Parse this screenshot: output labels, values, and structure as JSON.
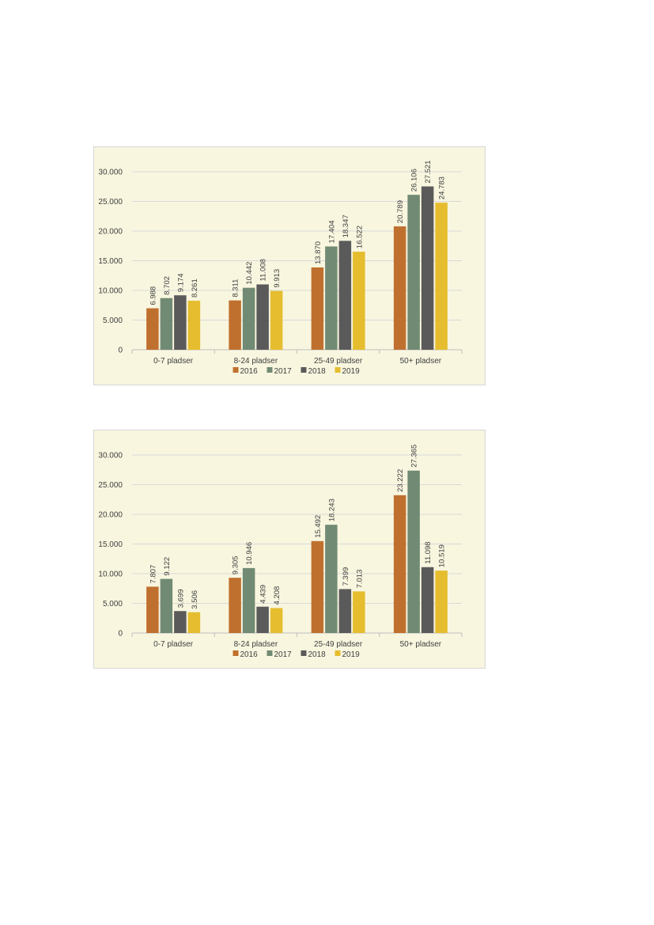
{
  "chart_data": [
    {
      "type": "bar",
      "categories": [
        "0-7 pladser",
        "8-24 pladser",
        "25-49 pladser",
        "50+ pladser"
      ],
      "series": [
        {
          "name": "2016",
          "color": "#c0702e",
          "values": [
            6.988,
            8.311,
            13.87,
            20.789
          ],
          "labels": [
            "6.988",
            "8.311",
            "13.870",
            "20.789"
          ]
        },
        {
          "name": "2017",
          "color": "#718a74",
          "values": [
            8.702,
            10.442,
            17.404,
            26.106
          ],
          "labels": [
            "8.702",
            "10.442",
            "17.404",
            "26.106"
          ]
        },
        {
          "name": "2018",
          "color": "#5a5a5a",
          "values": [
            9.174,
            11.008,
            18.347,
            27.521
          ],
          "labels": [
            "9.174",
            "11.008",
            "18.347",
            "27.521"
          ]
        },
        {
          "name": "2019",
          "color": "#e5bd2f",
          "values": [
            8.261,
            9.913,
            16.522,
            24.783
          ],
          "labels": [
            "8.261",
            "9.913",
            "16.522",
            "24.783"
          ]
        }
      ],
      "ylim": [
        0,
        30
      ],
      "yticks": [
        "0",
        "5.000",
        "10.000",
        "15.000",
        "20.000",
        "25.000",
        "30.000"
      ],
      "grid": true,
      "legend": "bottom"
    },
    {
      "type": "bar",
      "categories": [
        "0-7 pladser",
        "8-24 pladser",
        "25-49 pladser",
        "50+ pladser"
      ],
      "series": [
        {
          "name": "2016",
          "color": "#c0702e",
          "values": [
            7.807,
            9.305,
            15.492,
            23.222
          ],
          "labels": [
            "7.807",
            "9.305",
            "15.492",
            "23.222"
          ]
        },
        {
          "name": "2017",
          "color": "#718a74",
          "values": [
            9.122,
            10.946,
            18.243,
            27.365
          ],
          "labels": [
            "9.122",
            "10.946",
            "18.243",
            "27.365"
          ]
        },
        {
          "name": "2018",
          "color": "#5a5a5a",
          "values": [
            3.699,
            4.439,
            7.399,
            11.098
          ],
          "labels": [
            "3.699",
            "4.439",
            "7.399",
            "11.098"
          ]
        },
        {
          "name": "2019",
          "color": "#e5bd2f",
          "values": [
            3.506,
            4.208,
            7.013,
            10.519
          ],
          "labels": [
            "3.506",
            "4.208",
            "7.013",
            "10.519"
          ]
        }
      ],
      "ylim": [
        0,
        30
      ],
      "yticks": [
        "0",
        "5.000",
        "10.000",
        "15.000",
        "20.000",
        "25.000",
        "30.000"
      ],
      "grid": true,
      "legend": "bottom"
    }
  ]
}
